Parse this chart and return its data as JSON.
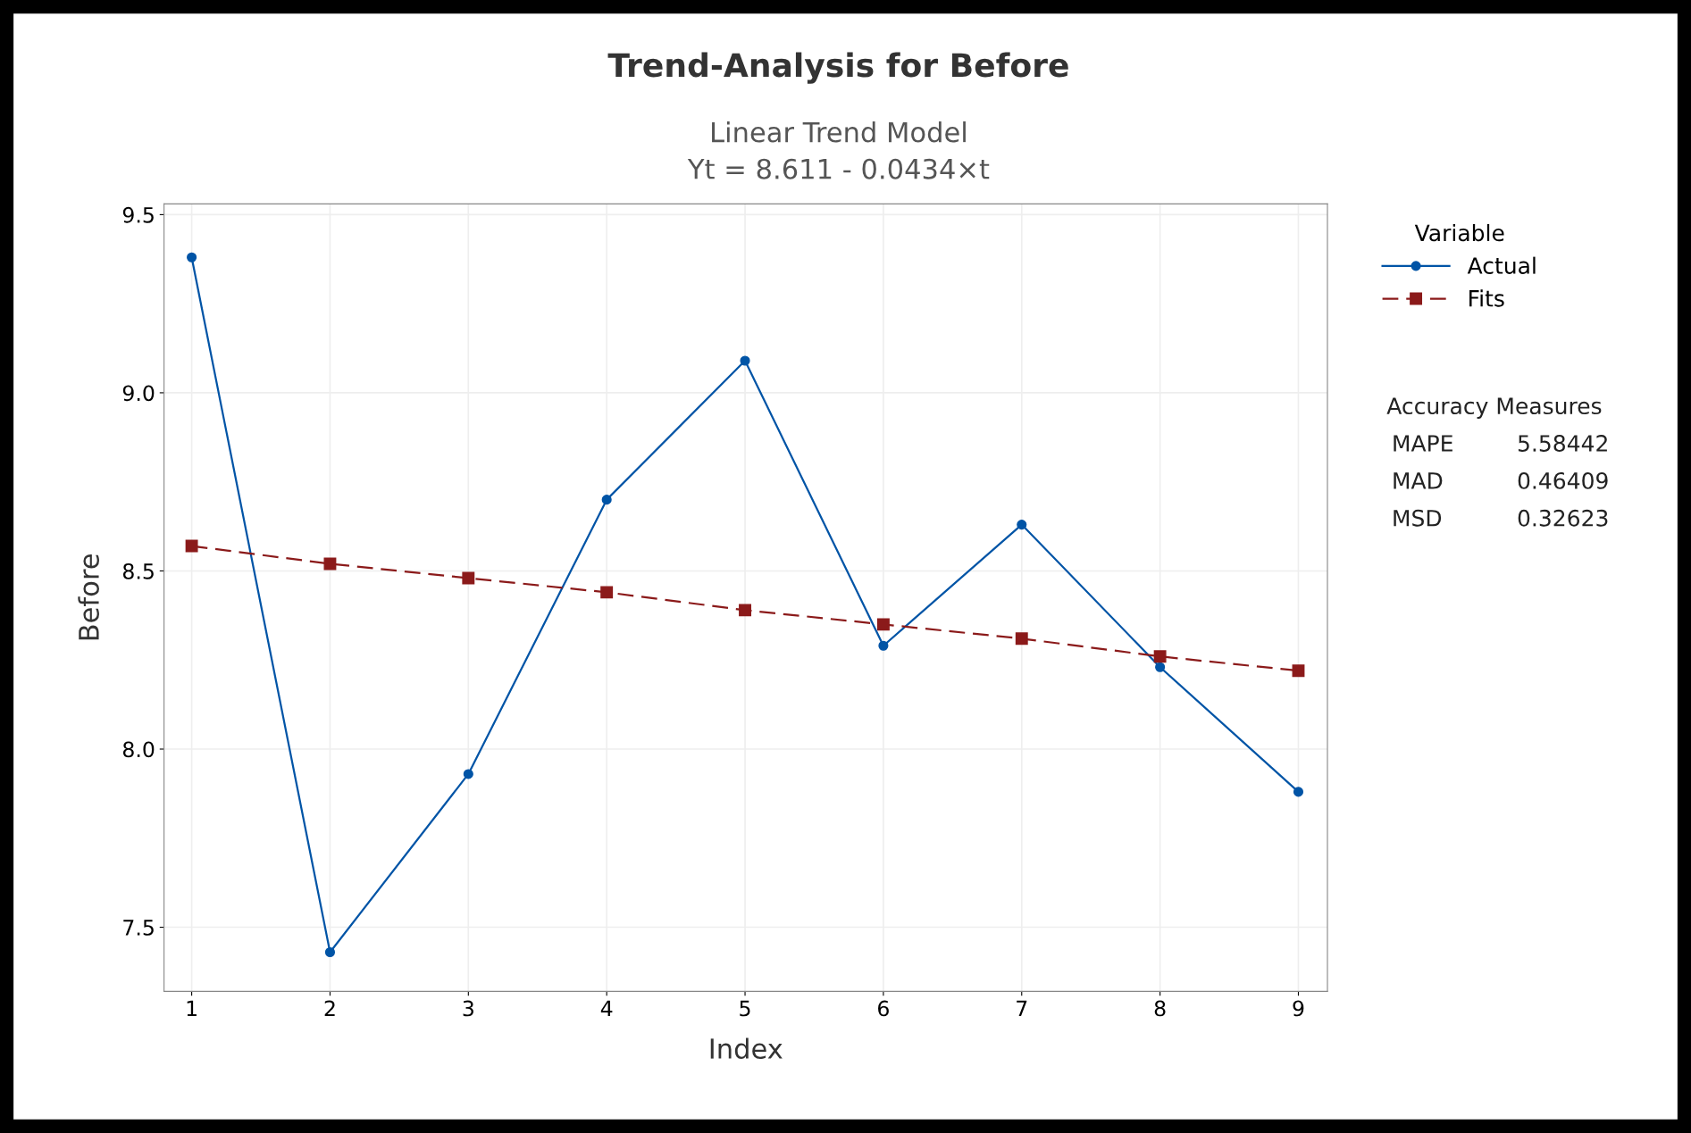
{
  "chart_data": {
    "type": "line",
    "title": "Trend-Analysis for Before",
    "subtitle": "Linear Trend Model\nYt = 8.611 - 0.0434×t",
    "xlabel": "Index",
    "ylabel": "Before",
    "legend_title": "Variable",
    "x": [
      1,
      2,
      3,
      4,
      5,
      6,
      7,
      8,
      9
    ],
    "series": [
      {
        "name": "Actual",
        "color": "#0054a6",
        "marker": "circle",
        "line_style": "solid",
        "values": [
          9.38,
          7.43,
          7.93,
          8.7,
          9.09,
          8.29,
          8.63,
          8.23,
          7.88
        ]
      },
      {
        "name": "Fits",
        "color": "#8b1a1a",
        "marker": "square",
        "line_style": "dashed",
        "values": [
          8.57,
          8.52,
          8.48,
          8.44,
          8.39,
          8.35,
          8.31,
          8.26,
          8.22
        ]
      }
    ],
    "xlim": [
      0.8,
      9.21
    ],
    "ylim": [
      7.32,
      9.53
    ],
    "xticks": [
      1,
      2,
      3,
      4,
      5,
      6,
      7,
      8,
      9
    ],
    "yticks": [
      {
        "value": 7.5,
        "label": "7.5"
      },
      {
        "value": 8.0,
        "label": "8.0"
      },
      {
        "value": 8.5,
        "label": "8.5"
      },
      {
        "value": 9.0,
        "label": "9.0"
      },
      {
        "value": 9.5,
        "label": "9.5"
      }
    ],
    "grid": true,
    "legend": "top right",
    "annotations": [
      "Accuracy Measures",
      "MAPE",
      "5.58442",
      "MAD",
      "0.46409",
      "MSD",
      "0.32623"
    ]
  }
}
